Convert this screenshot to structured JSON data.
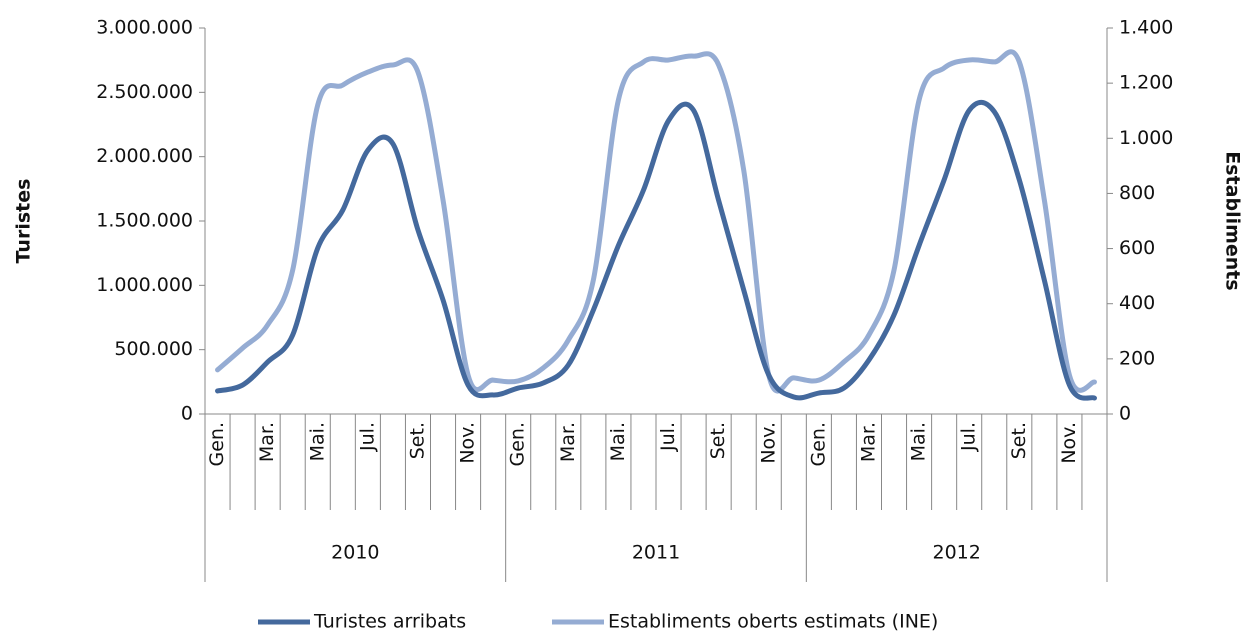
{
  "chart_data": {
    "type": "line",
    "y_label": "Turistes",
    "y2_label": "Establiments",
    "categories": [
      "Gen.",
      null,
      "Mar.",
      null,
      "Mai.",
      null,
      "Jul.",
      null,
      "Set.",
      null,
      "Nov.",
      null,
      "Gen.",
      null,
      "Mar.",
      null,
      "Mai.",
      null,
      "Jul.",
      null,
      "Set.",
      null,
      "Nov.",
      null,
      "Gen.",
      null,
      "Mar.",
      null,
      "Mai.",
      null,
      "Jul.",
      null,
      "Set.",
      null,
      "Nov.",
      null
    ],
    "x_groups": [
      "2010",
      "2011",
      "2012"
    ],
    "series": [
      {
        "name": "Turistes arribats",
        "color": "#44699d",
        "values": [
          179000,
          225000,
          404000,
          614000,
          1290000,
          1585000,
          2050000,
          2100000,
          1430000,
          886000,
          225000,
          148000,
          202000,
          241000,
          381000,
          808000,
          1310000,
          1740000,
          2280000,
          2360000,
          1660000,
          964000,
          303000,
          132000,
          163000,
          202000,
          420000,
          770000,
          1310000,
          1820000,
          2360000,
          2350000,
          1820000,
          1040000,
          225000,
          124000
        ]
      },
      {
        "name": "Establiments oberts estimats (INE)",
        "color": "#95acd3",
        "axis": "y2",
        "values": [
          160,
          239,
          323,
          522,
          1121,
          1193,
          1240,
          1266,
          1240,
          776,
          141,
          123,
          120,
          167,
          268,
          486,
          1139,
          1277,
          1284,
          1298,
          1266,
          885,
          141,
          131,
          123,
          189,
          287,
          522,
          1139,
          1255,
          1284,
          1277,
          1277,
          776,
          141,
          116
        ]
      }
    ],
    "ylim": [
      0,
      3000000
    ],
    "yticks": [
      0,
      {
        "value": 500000,
        "label": "500.000"
      },
      {
        "value": 1000000,
        "label": "1.000.000"
      },
      {
        "value": 1500000,
        "label": "1.500.000"
      },
      {
        "value": 2000000,
        "label": "2.000.000"
      },
      {
        "value": 2500000,
        "label": "2.500.000"
      },
      {
        "value": 3000000,
        "label": "3.000.000"
      }
    ],
    "y2lim": [
      0,
      1400
    ],
    "y2ticks": [
      0,
      200,
      400,
      600,
      800,
      {
        "value": 1000,
        "label": "1.000"
      },
      {
        "value": 1200,
        "label": "1.200"
      },
      {
        "value": 1400,
        "label": "1.400"
      }
    ],
    "legend": "bottom"
  }
}
